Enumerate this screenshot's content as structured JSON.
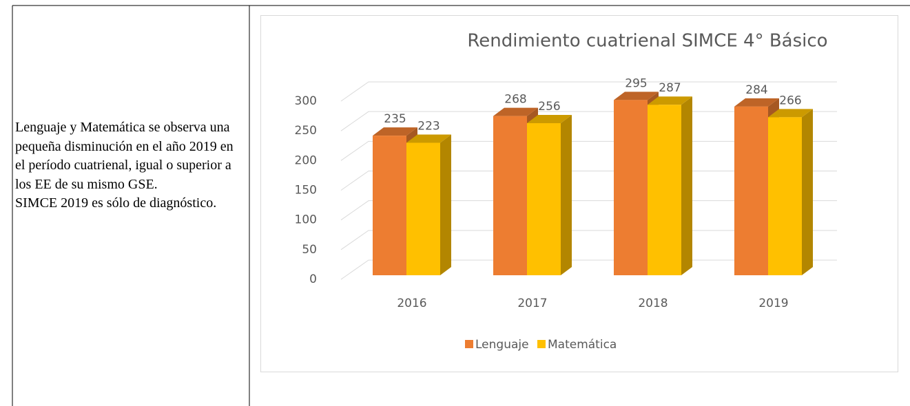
{
  "text": [
    "Lenguaje y Matemática se observa una pequeña disminución en el año 2019 en el período cuatrienal, igual o superior a los EE de su mismo GSE.",
    "SIMCE 2019 es sólo de diagnóstico."
  ],
  "chart_data": {
    "type": "bar3d",
    "title": "Rendimiento cuatrienal SIMCE 4° Básico",
    "categories": [
      "2016",
      "2017",
      "2018",
      "2019"
    ],
    "series": [
      {
        "name": "Lenguaje",
        "color": "#ed7d31",
        "values": [
          235,
          268,
          295,
          284
        ]
      },
      {
        "name": "Matemática",
        "color": "#ffc000",
        "values": [
          223,
          256,
          287,
          266
        ]
      }
    ],
    "ylim": [
      0,
      300
    ],
    "yticks": [
      0,
      50,
      100,
      150,
      200,
      250,
      300
    ],
    "grid": true,
    "legend": "bottom"
  }
}
